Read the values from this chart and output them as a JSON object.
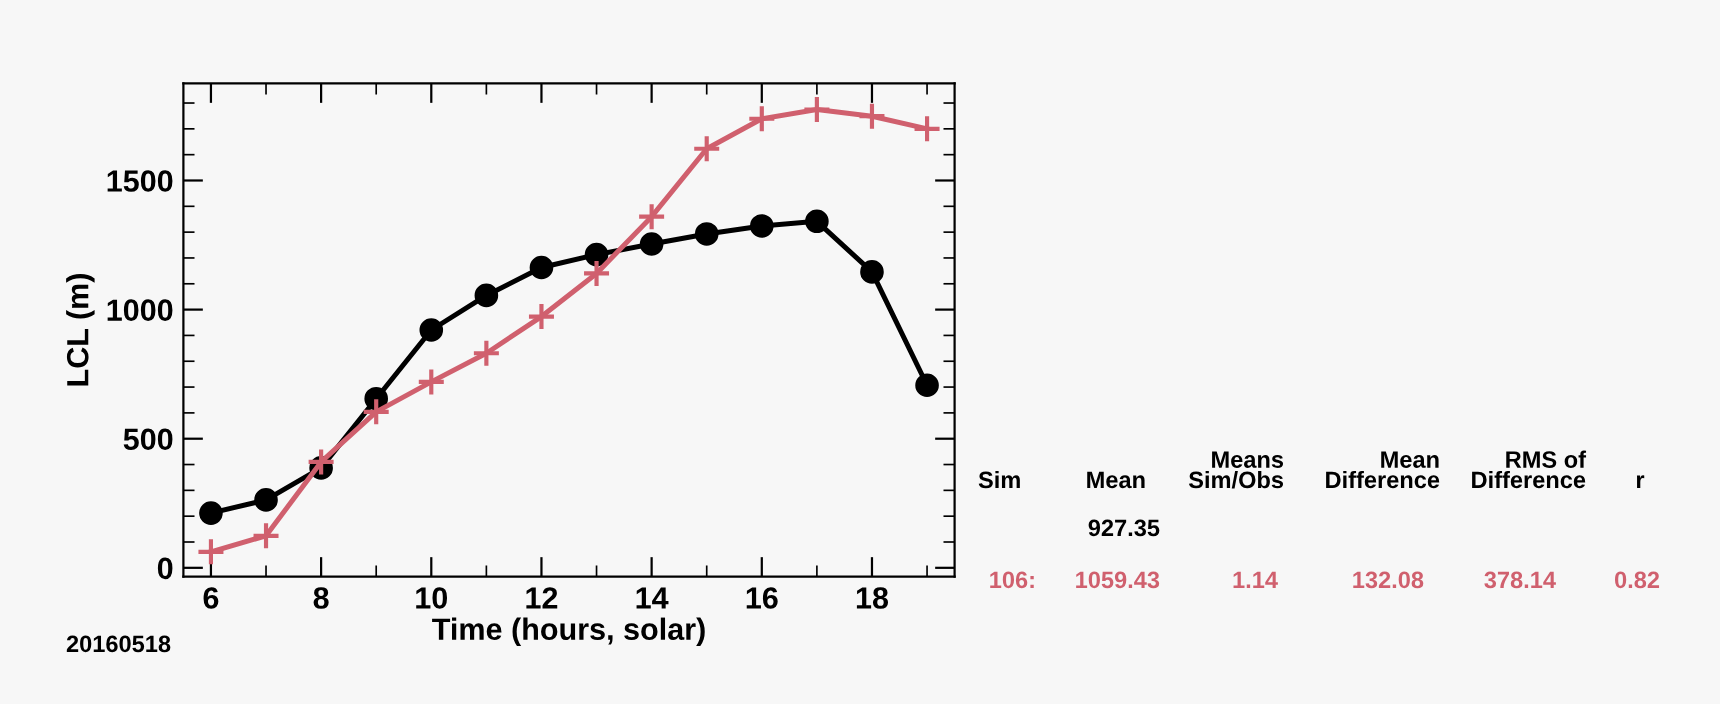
{
  "chart_data": {
    "type": "line",
    "xlabel": "Time (hours, solar)",
    "ylabel": "LCL (m)",
    "x": [
      6,
      7,
      8,
      9,
      10,
      11,
      12,
      13,
      14,
      15,
      16,
      17,
      18,
      19
    ],
    "series": [
      {
        "color": "#000000",
        "marker": "circle",
        "values": [
          212,
          263,
          387,
          655,
          921,
          1055,
          1163,
          1213,
          1254,
          1293,
          1324,
          1342,
          1146,
          707
        ]
      },
      {
        "color": "#d0606e",
        "marker": "cross",
        "values": [
          62,
          124,
          410,
          604,
          720,
          831,
          973,
          1140,
          1360,
          1623,
          1739,
          1775,
          1749,
          1700
        ]
      }
    ],
    "xlim": [
      5.5,
      19.5
    ],
    "ylim": [
      -34,
      1876
    ],
    "xticks": [
      6,
      8,
      10,
      12,
      14,
      16,
      18
    ],
    "yticks": [
      0,
      500,
      1000,
      1500
    ],
    "grid": false,
    "annotations": [
      "20160518",
      "Sim",
      "Mean",
      "Means\nSim/Obs",
      "Mean\nDifference",
      "RMS of\nDifference",
      "r",
      "927.35",
      "106:",
      "1059.43",
      "1.14",
      "132.08",
      "378.14",
      "0.82"
    ]
  }
}
